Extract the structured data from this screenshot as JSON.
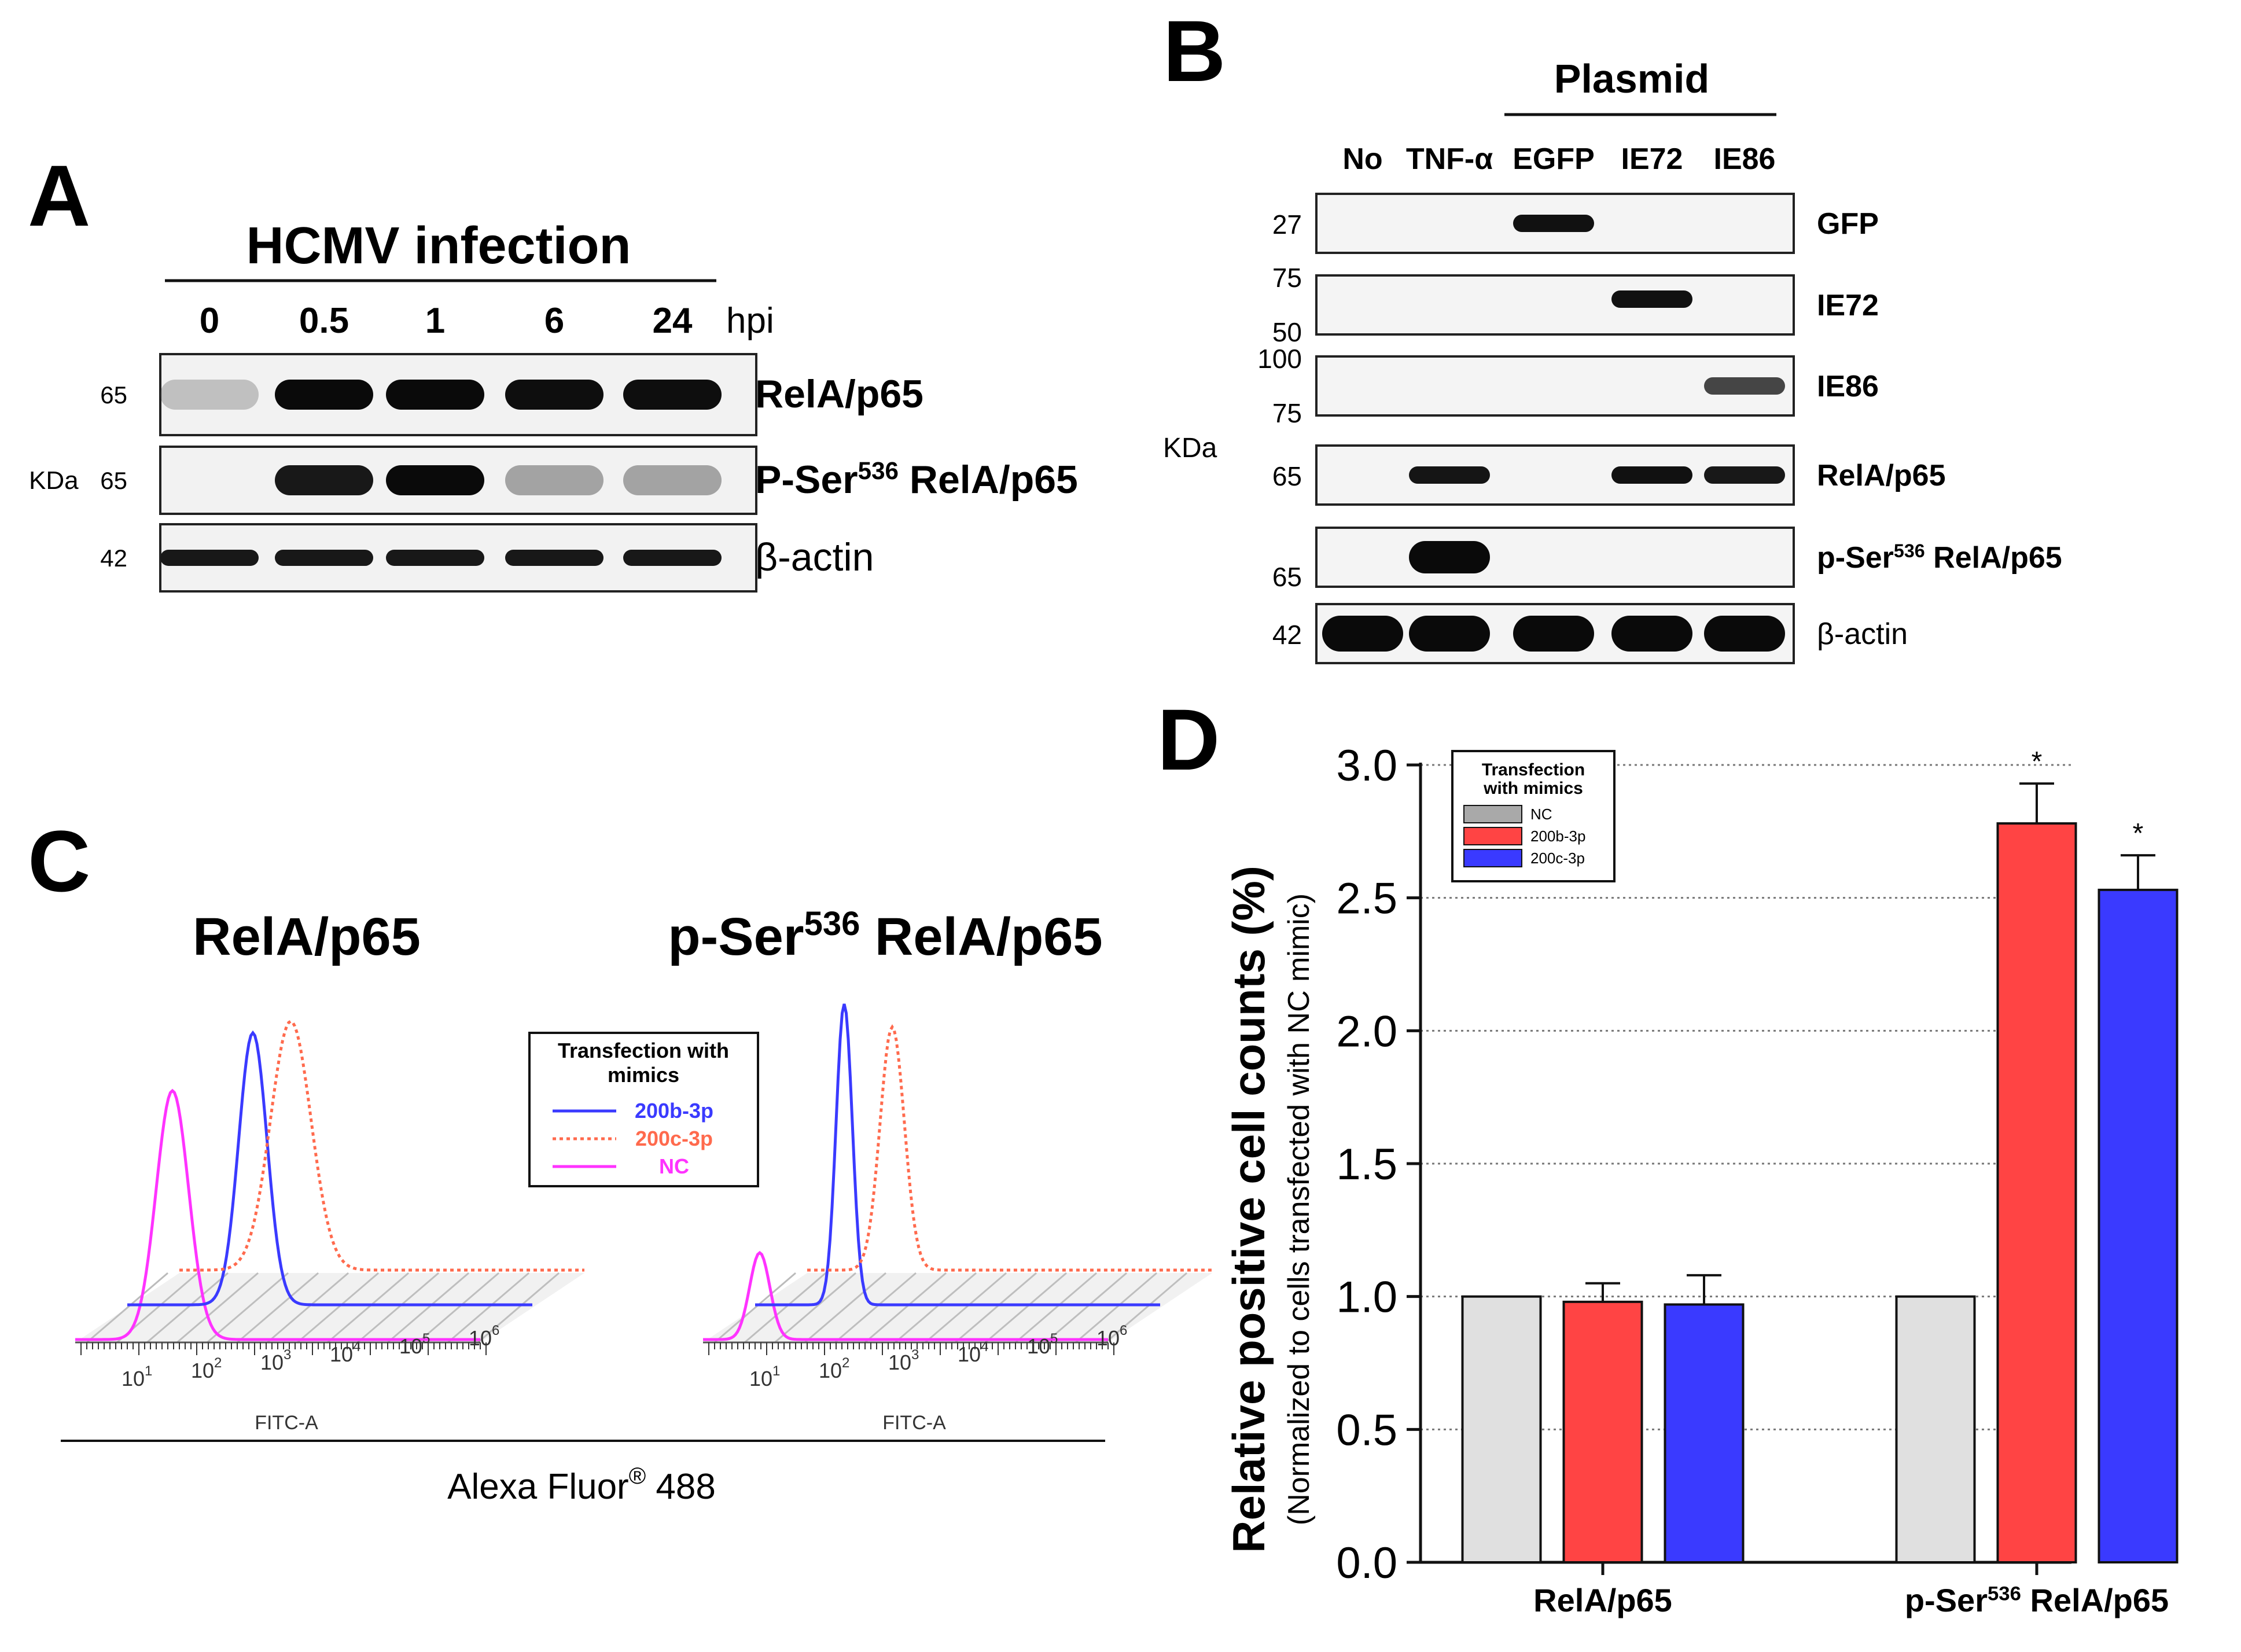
{
  "panel_a": {
    "letter": "A",
    "title": "HCMV infection",
    "timepoints": [
      "0",
      "0.5",
      "1",
      "6",
      "24"
    ],
    "unit": "hpi",
    "kda_label": "KDa",
    "rows": [
      {
        "mw": "65",
        "label": "RelA/p65",
        "intensity": [
          0.05,
          1.0,
          1.0,
          0.95,
          0.95
        ]
      },
      {
        "mw": "65",
        "label_pre": "P-Ser",
        "label_sup": "536",
        "label_post": " RelA/p65",
        "intensity": [
          0.0,
          0.8,
          1.0,
          0.2,
          0.2
        ]
      },
      {
        "mw": "42",
        "label": "β-actin",
        "intensity": [
          0.8,
          0.8,
          0.8,
          0.8,
          0.8
        ]
      }
    ]
  },
  "panel_b": {
    "letter": "B",
    "group_label": "Plasmid",
    "lanes": [
      "No",
      "TNF-α",
      "EGFP",
      "IE72",
      "IE86"
    ],
    "kda_label": "KDa",
    "rows": [
      {
        "mw": [
          "27"
        ],
        "label": "GFP",
        "intensity": [
          0,
          0,
          0.9,
          0,
          0
        ]
      },
      {
        "mw": [
          "75",
          "50"
        ],
        "label": "IE72",
        "intensity": [
          0,
          0,
          0,
          0.9,
          0
        ]
      },
      {
        "mw": [
          "100",
          "75"
        ],
        "label": "IE86",
        "intensity": [
          0,
          0,
          0,
          0,
          0.6
        ]
      },
      {
        "mw": [
          "65"
        ],
        "label": "RelA/p65",
        "intensity": [
          0,
          0.85,
          0,
          0.9,
          0.8
        ]
      },
      {
        "mw": [
          "65"
        ],
        "label_pre": "p-Ser",
        "label_sup": "536",
        "label_post": " RelA/p65",
        "intensity": [
          0,
          1.0,
          0,
          0,
          0
        ]
      },
      {
        "mw": [
          "42"
        ],
        "label": "β-actin",
        "intensity": [
          1,
          1,
          1,
          1,
          1
        ]
      }
    ]
  },
  "panel_c": {
    "letter": "C",
    "titles": [
      {
        "text": "RelA/p65"
      },
      {
        "pre": "p-Ser",
        "sup": "536",
        "post": " RelA/p65"
      }
    ],
    "legend_title_line1": "Transfection with",
    "legend_title_line2": "mimics",
    "legend": [
      {
        "label": "200b-3p",
        "color": "#3a3aff",
        "style": "solid"
      },
      {
        "label": "200c-3p",
        "color": "#ff6a4d",
        "style": "dotted"
      },
      {
        "label": "NC",
        "color": "#ff33ff",
        "style": "solid"
      }
    ],
    "axis_label": "FITC-A",
    "ticks": [
      "10",
      "10",
      "10",
      "10",
      "10",
      "10"
    ],
    "tick_exps": [
      "1",
      "2",
      "3",
      "4",
      "5",
      "6"
    ],
    "footer_pre": "Alexa Fluor",
    "footer_sup": "®",
    "footer_post": " 488"
  },
  "panel_d": {
    "letter": "D",
    "chart_data": {
      "type": "bar",
      "ylabel": "Relative positive cell counts (%)",
      "ylabel_sub": "(Normalized to cells transfected with NC mimic)",
      "categories": [
        "RelA/p65",
        "p-Ser536 RelA/p65"
      ],
      "category_labels": [
        {
          "text": "RelA/p65"
        },
        {
          "pre": "p-Ser",
          "sup": "536",
          "post": " RelA/p65"
        }
      ],
      "ylim": [
        0,
        3.0
      ],
      "yticks": [
        "0.0",
        "0.5",
        "1.0",
        "1.5",
        "2.0",
        "2.5",
        "3.0"
      ],
      "legend_title_line1": "Transfection",
      "legend_title_line2": "with mimics",
      "series": [
        {
          "name": "NC",
          "color": "#e0e0e0",
          "values": [
            1.0,
            1.0
          ],
          "errors": [
            0,
            0
          ],
          "sig": [
            "",
            ""
          ]
        },
        {
          "name": "200b-3p",
          "color": "#ff4444",
          "values": [
            0.98,
            2.78
          ],
          "errors": [
            0.07,
            0.15
          ],
          "sig": [
            "",
            "*"
          ]
        },
        {
          "name": "200c-3p",
          "color": "#3a3aff",
          "values": [
            0.97,
            2.53
          ],
          "errors": [
            0.11,
            0.13
          ],
          "sig": [
            "",
            "*"
          ]
        }
      ],
      "grid": "horizontal dotted"
    }
  }
}
